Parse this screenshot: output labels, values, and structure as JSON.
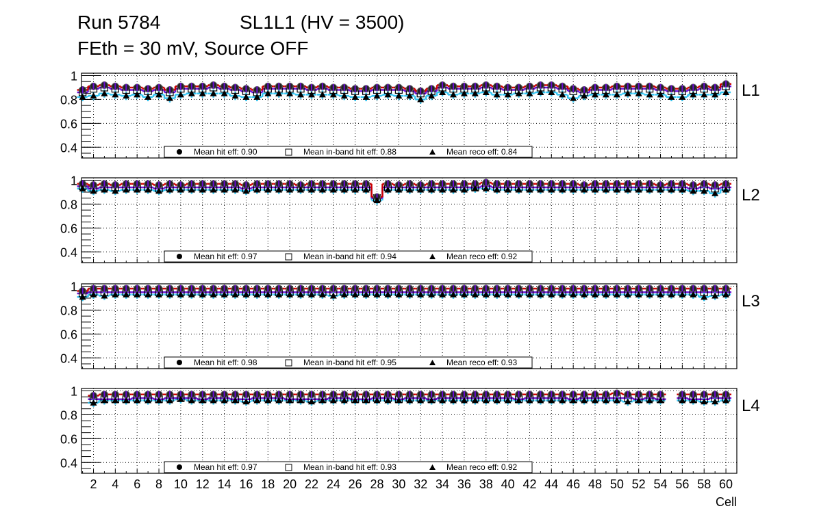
{
  "chart_data": {
    "type": "scatter",
    "title_line1_left": "Run 5784",
    "title_line1_right": "SL1L1 (HV = 3500)",
    "title_line2": "FEth = 30 mV, Source OFF",
    "xlabel": "Cell",
    "xlim": [
      0.9,
      61.0
    ],
    "ylim": [
      0.31,
      1.02
    ],
    "x_tick_labels": [
      "2",
      "4",
      "6",
      "8",
      "10",
      "12",
      "14",
      "16",
      "18",
      "20",
      "22",
      "24",
      "26",
      "28",
      "30",
      "32",
      "34",
      "36",
      "38",
      "40",
      "42",
      "44",
      "46",
      "48",
      "50",
      "52",
      "54",
      "56",
      "58",
      "60"
    ],
    "y_tick_labels": [
      "0.4",
      "0.6",
      "0.8",
      "1"
    ],
    "y_ticks": [
      0.4,
      0.6,
      0.8,
      1.0
    ],
    "grid": true,
    "colors": {
      "hit": "#cc0000",
      "inband": "#6a0dd4",
      "reco": "#33c4f0",
      "marker": "#000000"
    },
    "panels": [
      {
        "label": "L1",
        "legend": {
          "hit": "Mean hit  eff: 0.90",
          "inband": "Mean in-band hit eff: 0.88",
          "reco": "Mean reco eff: 0.84"
        },
        "hit": [
          0.88,
          0.91,
          0.92,
          0.91,
          0.9,
          0.9,
          0.89,
          0.9,
          0.88,
          0.91,
          0.91,
          0.91,
          0.92,
          0.91,
          0.9,
          0.89,
          0.88,
          0.91,
          0.91,
          0.91,
          0.91,
          0.9,
          0.91,
          0.9,
          0.9,
          0.89,
          0.89,
          0.9,
          0.9,
          0.9,
          0.89,
          0.87,
          0.89,
          0.92,
          0.91,
          0.91,
          0.91,
          0.92,
          0.91,
          0.9,
          0.9,
          0.91,
          0.92,
          0.92,
          0.91,
          0.89,
          0.88,
          0.9,
          0.9,
          0.91,
          0.91,
          0.91,
          0.91,
          0.9,
          0.89,
          0.89,
          0.9,
          0.91,
          0.9,
          0.93
        ],
        "inband": [
          0.86,
          0.89,
          0.9,
          0.89,
          0.88,
          0.88,
          0.87,
          0.88,
          0.86,
          0.89,
          0.89,
          0.89,
          0.9,
          0.89,
          0.88,
          0.87,
          0.86,
          0.89,
          0.89,
          0.89,
          0.89,
          0.88,
          0.89,
          0.88,
          0.88,
          0.87,
          0.87,
          0.88,
          0.88,
          0.88,
          0.87,
          0.85,
          0.87,
          0.9,
          0.89,
          0.89,
          0.89,
          0.9,
          0.89,
          0.88,
          0.88,
          0.89,
          0.9,
          0.9,
          0.89,
          0.87,
          0.86,
          0.88,
          0.88,
          0.89,
          0.89,
          0.89,
          0.89,
          0.88,
          0.87,
          0.87,
          0.88,
          0.89,
          0.88,
          0.91
        ],
        "reco": [
          0.82,
          0.83,
          0.85,
          0.84,
          0.83,
          0.84,
          0.82,
          0.84,
          0.81,
          0.84,
          0.85,
          0.85,
          0.85,
          0.85,
          0.83,
          0.82,
          0.82,
          0.85,
          0.85,
          0.85,
          0.84,
          0.84,
          0.84,
          0.84,
          0.83,
          0.82,
          0.82,
          0.83,
          0.84,
          0.83,
          0.83,
          0.8,
          0.83,
          0.86,
          0.84,
          0.85,
          0.85,
          0.86,
          0.84,
          0.84,
          0.85,
          0.85,
          0.86,
          0.86,
          0.84,
          0.81,
          0.83,
          0.84,
          0.84,
          0.84,
          0.85,
          0.85,
          0.84,
          0.84,
          0.82,
          0.82,
          0.84,
          0.84,
          0.84,
          0.86
        ]
      },
      {
        "label": "L2",
        "legend": {
          "hit": "Mean hit  eff: 0.97",
          "inband": "Mean in-band hit eff: 0.94",
          "reco": "Mean reco eff: 0.92"
        },
        "hit": [
          0.97,
          0.96,
          0.97,
          0.96,
          0.97,
          0.97,
          0.97,
          0.96,
          0.97,
          0.96,
          0.97,
          0.97,
          0.97,
          0.97,
          0.97,
          0.96,
          0.97,
          0.97,
          0.97,
          0.97,
          0.96,
          0.97,
          0.97,
          0.97,
          0.97,
          0.97,
          0.97,
          0.86,
          0.97,
          0.96,
          0.97,
          0.96,
          0.97,
          0.97,
          0.97,
          0.97,
          0.97,
          0.98,
          0.97,
          0.97,
          0.97,
          0.97,
          0.97,
          0.97,
          0.97,
          0.97,
          0.96,
          0.97,
          0.97,
          0.97,
          0.97,
          0.97,
          0.97,
          0.96,
          0.97,
          0.97,
          0.96,
          0.97,
          0.96,
          0.97
        ],
        "inband": [
          0.95,
          0.93,
          0.94,
          0.94,
          0.94,
          0.94,
          0.94,
          0.93,
          0.94,
          0.94,
          0.94,
          0.94,
          0.94,
          0.94,
          0.94,
          0.93,
          0.94,
          0.94,
          0.94,
          0.94,
          0.94,
          0.94,
          0.94,
          0.94,
          0.94,
          0.94,
          0.94,
          0.85,
          0.94,
          0.94,
          0.94,
          0.94,
          0.94,
          0.94,
          0.94,
          0.94,
          0.94,
          0.95,
          0.94,
          0.94,
          0.94,
          0.94,
          0.94,
          0.94,
          0.94,
          0.94,
          0.94,
          0.94,
          0.94,
          0.94,
          0.94,
          0.94,
          0.94,
          0.94,
          0.94,
          0.94,
          0.93,
          0.94,
          0.93,
          0.94
        ],
        "reco": [
          0.93,
          0.91,
          0.92,
          0.91,
          0.92,
          0.92,
          0.92,
          0.91,
          0.92,
          0.92,
          0.92,
          0.92,
          0.92,
          0.92,
          0.92,
          0.91,
          0.92,
          0.92,
          0.92,
          0.92,
          0.92,
          0.92,
          0.92,
          0.92,
          0.92,
          0.92,
          0.92,
          0.83,
          0.92,
          0.92,
          0.92,
          0.92,
          0.92,
          0.92,
          0.92,
          0.92,
          0.93,
          0.93,
          0.92,
          0.92,
          0.92,
          0.92,
          0.92,
          0.92,
          0.92,
          0.92,
          0.92,
          0.92,
          0.92,
          0.92,
          0.92,
          0.92,
          0.92,
          0.92,
          0.92,
          0.92,
          0.91,
          0.91,
          0.89,
          0.92
        ]
      },
      {
        "label": "L3",
        "legend": {
          "hit": "Mean hit  eff: 0.98",
          "inband": "Mean in-band hit eff: 0.95",
          "reco": "Mean reco eff: 0.93"
        },
        "hit": [
          0.96,
          0.98,
          0.98,
          0.98,
          0.98,
          0.98,
          0.98,
          0.98,
          0.98,
          0.98,
          0.98,
          0.98,
          0.98,
          0.98,
          0.98,
          0.98,
          0.98,
          0.98,
          0.98,
          0.98,
          0.98,
          0.98,
          0.98,
          0.98,
          0.98,
          0.98,
          0.98,
          0.98,
          0.98,
          0.98,
          0.98,
          0.98,
          0.98,
          0.98,
          0.98,
          0.98,
          0.98,
          0.98,
          0.98,
          0.98,
          0.98,
          0.98,
          0.98,
          0.98,
          0.98,
          0.98,
          0.98,
          0.98,
          0.98,
          0.98,
          0.98,
          0.98,
          0.98,
          0.98,
          0.98,
          0.98,
          0.98,
          0.98,
          0.98,
          0.98
        ],
        "inband": [
          0.94,
          0.95,
          0.95,
          0.95,
          0.95,
          0.95,
          0.95,
          0.95,
          0.95,
          0.95,
          0.95,
          0.95,
          0.95,
          0.95,
          0.95,
          0.95,
          0.95,
          0.95,
          0.95,
          0.95,
          0.95,
          0.95,
          0.95,
          0.95,
          0.95,
          0.95,
          0.95,
          0.95,
          0.95,
          0.95,
          0.95,
          0.95,
          0.95,
          0.95,
          0.95,
          0.95,
          0.95,
          0.95,
          0.95,
          0.95,
          0.95,
          0.95,
          0.95,
          0.95,
          0.95,
          0.95,
          0.95,
          0.95,
          0.95,
          0.95,
          0.95,
          0.95,
          0.95,
          0.95,
          0.95,
          0.95,
          0.95,
          0.95,
          0.95,
          0.95
        ],
        "reco": [
          0.91,
          0.93,
          0.92,
          0.93,
          0.93,
          0.93,
          0.93,
          0.93,
          0.93,
          0.93,
          0.93,
          0.93,
          0.93,
          0.93,
          0.93,
          0.93,
          0.93,
          0.93,
          0.93,
          0.93,
          0.93,
          0.93,
          0.93,
          0.92,
          0.93,
          0.93,
          0.93,
          0.93,
          0.93,
          0.93,
          0.93,
          0.93,
          0.93,
          0.93,
          0.93,
          0.93,
          0.93,
          0.93,
          0.93,
          0.93,
          0.93,
          0.93,
          0.93,
          0.93,
          0.93,
          0.93,
          0.93,
          0.93,
          0.93,
          0.93,
          0.93,
          0.93,
          0.93,
          0.93,
          0.93,
          0.93,
          0.93,
          0.91,
          0.92,
          0.93
        ]
      },
      {
        "label": "L4",
        "legend": {
          "hit": "Mean hit  eff: 0.97",
          "inband": "Mean in-band hit eff: 0.93",
          "reco": "Mean reco eff: 0.92"
        },
        "hit": [
          null,
          0.96,
          0.97,
          0.97,
          0.97,
          0.97,
          0.97,
          0.97,
          0.97,
          0.97,
          0.97,
          0.97,
          0.97,
          0.97,
          0.97,
          0.97,
          0.97,
          0.97,
          0.97,
          0.97,
          0.97,
          0.97,
          0.97,
          0.97,
          0.97,
          0.97,
          0.97,
          0.97,
          0.97,
          0.97,
          0.97,
          0.97,
          0.97,
          0.97,
          0.97,
          0.97,
          0.97,
          0.97,
          0.97,
          0.97,
          0.97,
          0.97,
          0.97,
          0.97,
          0.97,
          0.97,
          0.97,
          0.97,
          0.97,
          0.98,
          0.97,
          0.97,
          0.97,
          0.97,
          null,
          0.97,
          0.97,
          0.97,
          0.97,
          0.97
        ],
        "inband": [
          null,
          0.93,
          0.93,
          0.93,
          0.93,
          0.94,
          0.94,
          0.93,
          0.94,
          0.94,
          0.94,
          0.93,
          0.94,
          0.94,
          0.93,
          0.93,
          0.94,
          0.94,
          0.94,
          0.93,
          0.93,
          0.93,
          0.93,
          0.94,
          0.94,
          0.93,
          0.93,
          0.94,
          0.94,
          0.93,
          0.94,
          0.94,
          0.93,
          0.94,
          0.94,
          0.94,
          0.94,
          0.94,
          0.94,
          0.94,
          0.93,
          0.94,
          0.94,
          0.94,
          0.94,
          0.93,
          0.94,
          0.94,
          0.94,
          0.94,
          0.94,
          0.93,
          0.94,
          0.93,
          null,
          0.94,
          0.93,
          0.93,
          0.94,
          0.94
        ],
        "reco": [
          null,
          0.9,
          0.92,
          0.92,
          0.92,
          0.92,
          0.92,
          0.92,
          0.92,
          0.93,
          0.92,
          0.92,
          0.92,
          0.92,
          0.92,
          0.91,
          0.92,
          0.92,
          0.92,
          0.92,
          0.92,
          0.91,
          0.92,
          0.92,
          0.92,
          0.92,
          0.92,
          0.92,
          0.92,
          0.92,
          0.92,
          0.92,
          0.92,
          0.92,
          0.92,
          0.92,
          0.92,
          0.92,
          0.92,
          0.92,
          0.92,
          0.92,
          0.92,
          0.92,
          0.92,
          0.92,
          0.92,
          0.92,
          0.92,
          0.92,
          0.91,
          0.92,
          0.92,
          0.92,
          null,
          0.92,
          0.92,
          0.91,
          0.91,
          0.92
        ]
      }
    ]
  }
}
